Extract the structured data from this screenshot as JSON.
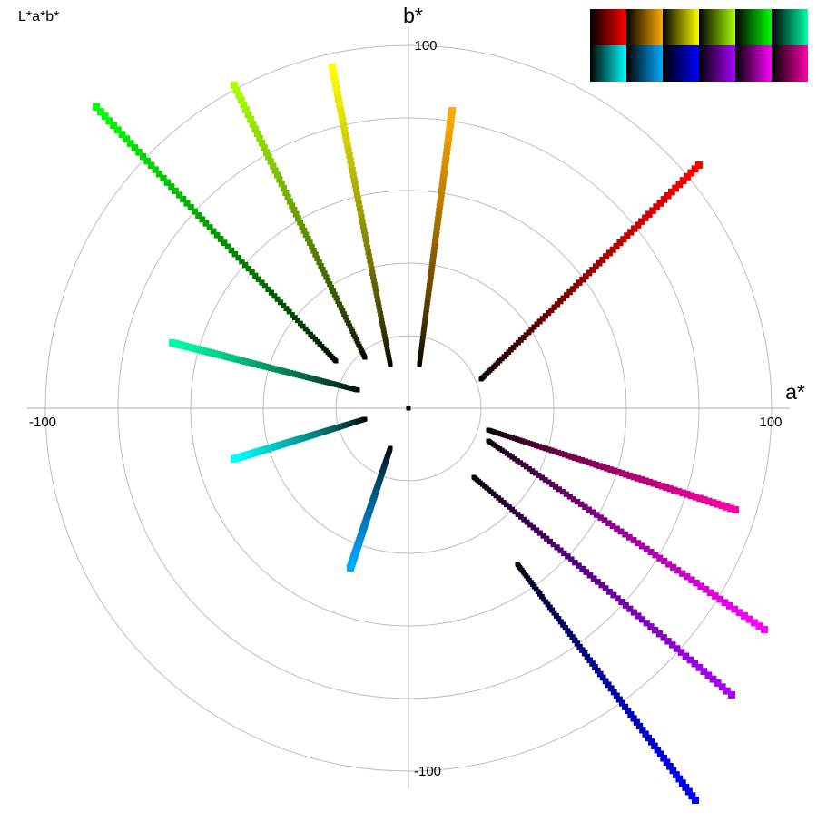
{
  "mode_label": "L*a*b*",
  "chart_data": {
    "type": "scatter",
    "coordinate": "polar",
    "xlabel": "a*",
    "ylabel": "b*",
    "xlim": [
      -100,
      100
    ],
    "ylim": [
      -100,
      100
    ],
    "tick_labels": {
      "x_min": "-100",
      "x_max": "100",
      "y_min": "-100",
      "y_max": "100"
    },
    "grid_radii": [
      20,
      40,
      60,
      80,
      100
    ],
    "grid": true,
    "series": [
      {
        "color": "#ff0000",
        "end": [
          80,
          67
        ],
        "start": [
          20,
          8
        ],
        "steps": 75
      },
      {
        "color": "#ffaa00",
        "end": [
          12,
          82
        ],
        "start": [
          3,
          12
        ],
        "steps": 75
      },
      {
        "color": "#ffff00",
        "end": [
          -21,
          94
        ],
        "start": [
          -5,
          12
        ],
        "steps": 75
      },
      {
        "color": "#aaff00",
        "end": [
          -48,
          89
        ],
        "start": [
          -12,
          14
        ],
        "steps": 75
      },
      {
        "color": "#00ff00",
        "end": [
          -86,
          83
        ],
        "start": [
          -20,
          13
        ],
        "steps": 75
      },
      {
        "color": "#00ffaa",
        "end": [
          -65,
          18
        ],
        "start": [
          -14,
          5
        ],
        "steps": 75
      },
      {
        "color": "#00ffff",
        "end": [
          -48,
          -14
        ],
        "start": [
          -12,
          -3
        ],
        "steps": 75
      },
      {
        "color": "#00aaff",
        "end": [
          -16,
          -44
        ],
        "start": [
          -5,
          -11
        ],
        "steps": 75
      },
      {
        "color": "#0000ff",
        "end": [
          79,
          -108
        ],
        "start": [
          30,
          -43
        ],
        "steps": 75
      },
      {
        "color": "#aa00ff",
        "end": [
          89,
          -79
        ],
        "start": [
          18,
          -19
        ],
        "steps": 75
      },
      {
        "color": "#ff00ff",
        "end": [
          98,
          -61
        ],
        "start": [
          22,
          -9
        ],
        "steps": 75
      },
      {
        "color": "#ff00aa",
        "end": [
          90,
          -28
        ],
        "start": [
          22,
          -6
        ],
        "steps": 75
      }
    ],
    "swatches": {
      "rows": [
        [
          "#ff0000",
          "#ffaa00",
          "#ffff00",
          "#aaff00",
          "#00ff00",
          "#00ffaa"
        ],
        [
          "#00ffff",
          "#00aaff",
          "#0000ff",
          "#aa00ff",
          "#ff00ff",
          "#ff00aa"
        ]
      ]
    }
  }
}
